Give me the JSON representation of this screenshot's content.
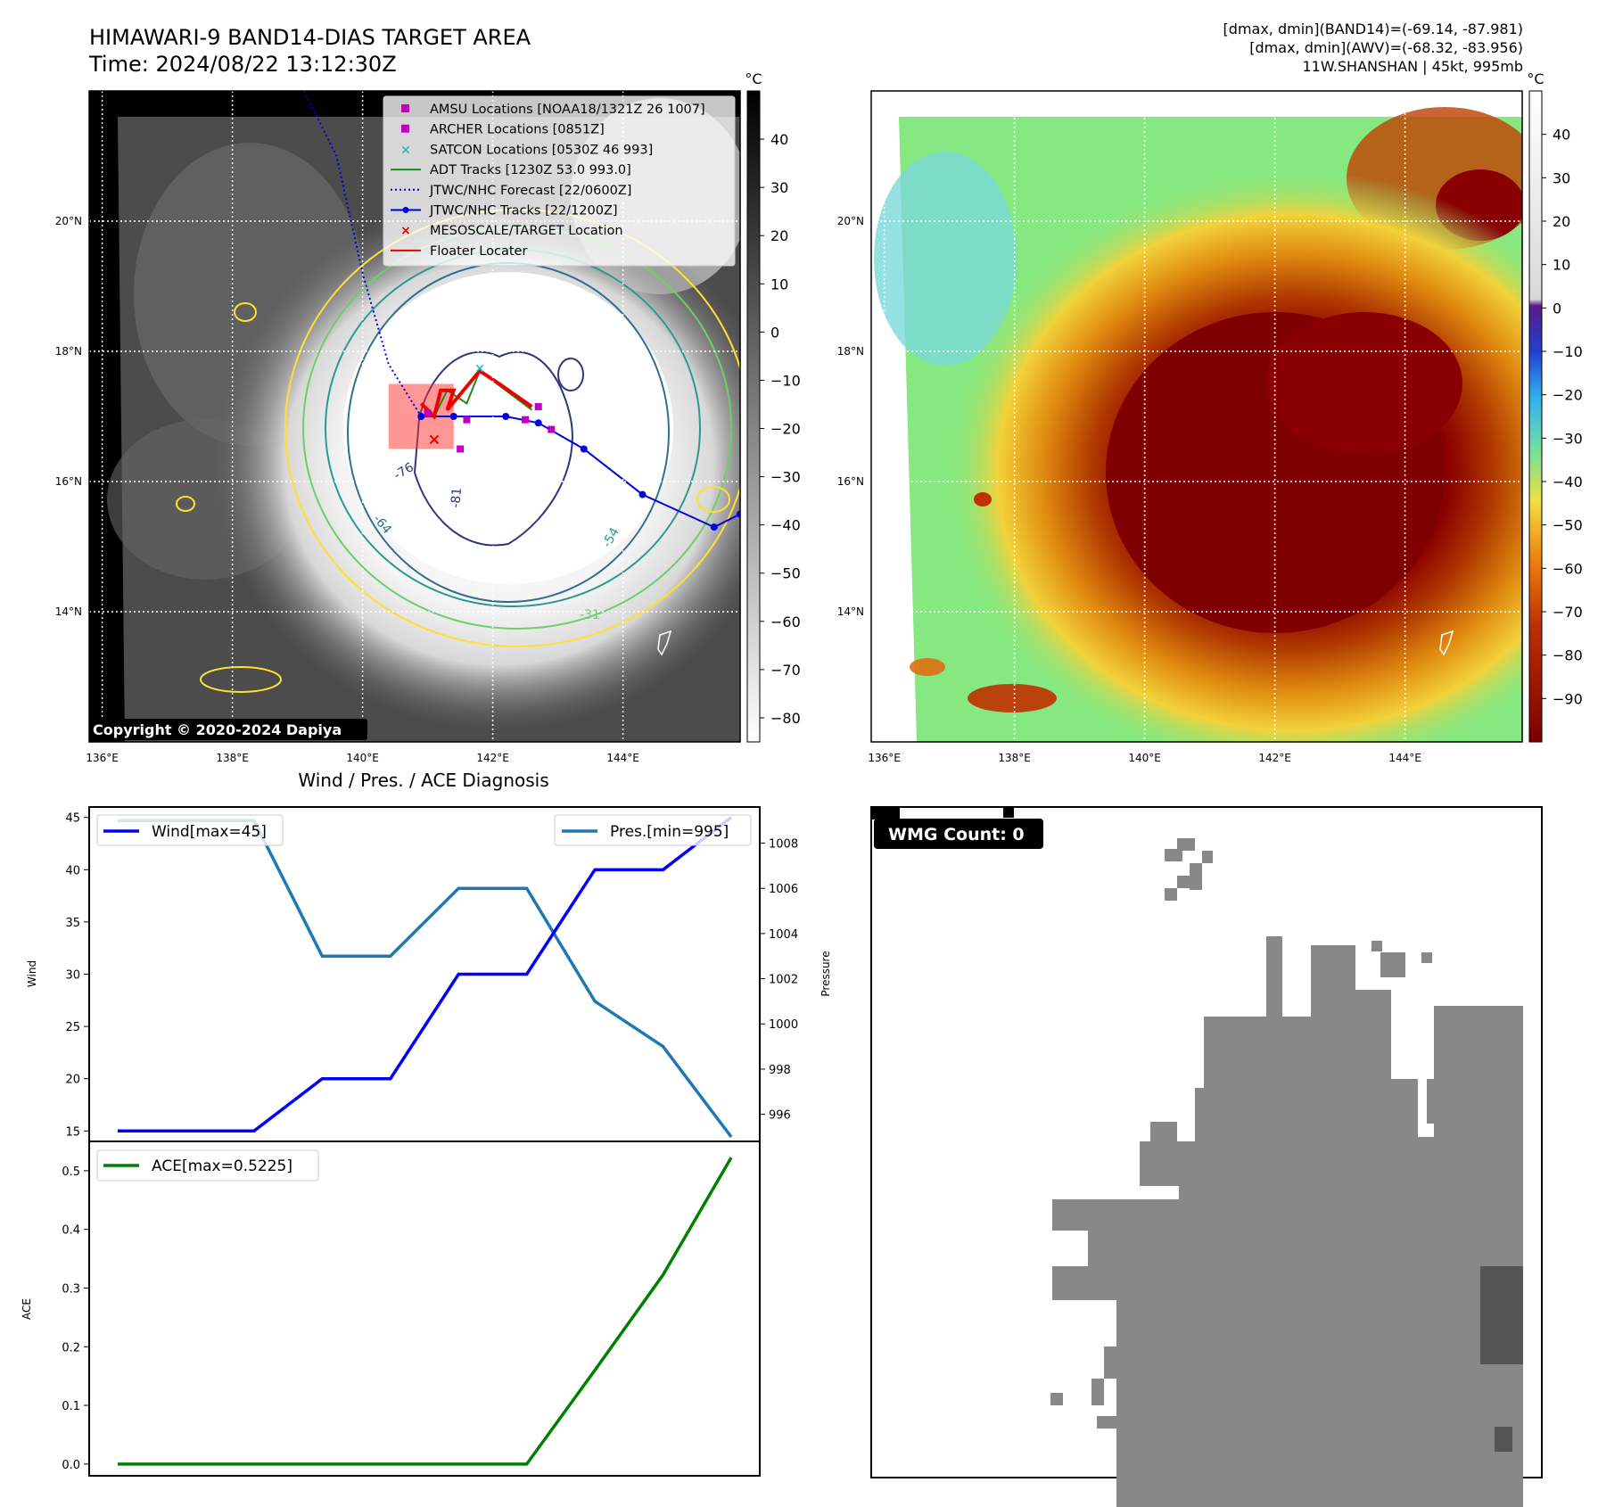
{
  "header": {
    "title": "HIMAWARI-9 BAND14-DIAS TARGET AREA",
    "time": "Time: 2024/08/22 13:12:30Z",
    "stats_band14": "[dmax, dmin](BAND14)=(-69.14, -87.981)",
    "stats_awv": "[dmax, dmin](AWV)=(-68.32, -83.956)",
    "storm": "11W.SHANSHAN | 45kt, 995mb"
  },
  "map": {
    "lon_ticks": [
      "136°E",
      "138°E",
      "140°E",
      "142°E",
      "144°E"
    ],
    "lat_ticks": [
      "20°N",
      "18°N",
      "16°N",
      "14°N"
    ],
    "lon_values": [
      136,
      138,
      140,
      142,
      144
    ],
    "lat_values": [
      20,
      18,
      16,
      14
    ],
    "lon_range": [
      135.8,
      145.8
    ],
    "lat_range": [
      12.0,
      22.0
    ],
    "copyright": "Copyright © 2020-2024 Dapiya",
    "contour_labels": [
      "-31",
      "-54",
      "-64",
      "-76",
      "-81"
    ],
    "legend": [
      {
        "label": "AMSU Locations [NOAA18/1321Z 26 1007]",
        "marker": "square",
        "color": "#c000c0"
      },
      {
        "label": "ARCHER Locations [0851Z]",
        "marker": "square",
        "color": "#c000c0"
      },
      {
        "label": "SATCON Locations [0530Z 46 993]",
        "marker": "x",
        "color": "#20c0c0"
      },
      {
        "label": "ADT Tracks [1230Z 53.0 993.0]",
        "marker": "line",
        "color": "#1a8a1a"
      },
      {
        "label": "JTWC/NHC Forecast [22/0600Z]",
        "marker": "dotted",
        "color": "#0000dd"
      },
      {
        "label": "JTWC/NHC Tracks [22/1200Z]",
        "marker": "line-dot",
        "color": "#0000dd"
      },
      {
        "label": "MESOSCALE/TARGET Location",
        "marker": "x",
        "color": "#ee0000"
      },
      {
        "label": "Floater Locater",
        "marker": "line",
        "color": "#ee0000"
      }
    ],
    "jtwc_track": [
      [
        140.9,
        17.0
      ],
      [
        141.4,
        17.0
      ],
      [
        142.2,
        17.0
      ],
      [
        142.7,
        16.9
      ],
      [
        143.4,
        16.5
      ],
      [
        144.3,
        15.8
      ],
      [
        145.4,
        15.3
      ],
      [
        145.8,
        15.5
      ]
    ],
    "jtwc_forecast": [
      [
        139.1,
        22.0
      ],
      [
        139.6,
        21.0
      ],
      [
        140.0,
        19.2
      ],
      [
        140.4,
        17.8
      ],
      [
        140.9,
        17.0
      ]
    ],
    "amsu": [
      [
        141.0,
        17.05
      ],
      [
        141.6,
        16.95
      ],
      [
        142.5,
        16.95
      ],
      [
        142.9,
        16.8
      ],
      [
        141.5,
        16.5
      ]
    ],
    "archer": [
      [
        142.7,
        17.15
      ]
    ],
    "satcon": [
      [
        141.8,
        17.75
      ]
    ],
    "target": [
      [
        141.1,
        16.65
      ]
    ]
  },
  "colorbar_gray": {
    "unit": "°C",
    "ticks": [
      "40",
      "30",
      "20",
      "10",
      "0",
      "−10",
      "−20",
      "−30",
      "−40",
      "−50",
      "−60",
      "−70",
      "−80"
    ],
    "values": [
      40,
      30,
      20,
      10,
      0,
      -10,
      -20,
      -30,
      -40,
      -50,
      -60,
      -70,
      -80
    ],
    "range": [
      -85,
      50
    ]
  },
  "colorbar_awv": {
    "unit": "°C",
    "ticks": [
      "40",
      "30",
      "20",
      "10",
      "0",
      "−10",
      "−20",
      "−30",
      "−40",
      "−50",
      "−60",
      "−70",
      "−80",
      "−90"
    ],
    "values": [
      40,
      30,
      20,
      10,
      0,
      -10,
      -20,
      -30,
      -40,
      -50,
      -60,
      -70,
      -80,
      -90
    ],
    "range": [
      -100,
      50
    ]
  },
  "chart_data": [
    {
      "type": "line",
      "title": "Wind / Pres. / ACE Diagnosis",
      "ylabel": "Wind",
      "y2label": "Pressure",
      "ylim": [
        14,
        46
      ],
      "y2lim": [
        994.8,
        1009.6
      ],
      "yticks": [
        15,
        20,
        25,
        30,
        35,
        40,
        45
      ],
      "y2ticks": [
        996,
        998,
        1000,
        1002,
        1004,
        1006,
        1008
      ],
      "x": [
        0,
        1,
        2,
        3,
        4,
        5,
        6,
        7,
        8,
        9
      ],
      "series": [
        {
          "name": "Wind[max=45]",
          "color": "#0000ff",
          "axis": "left",
          "values": [
            15,
            15,
            15,
            20,
            20,
            30,
            30,
            40,
            40,
            45
          ]
        },
        {
          "name": "Pres.[min=995]",
          "color": "#1f77b4",
          "axis": "right",
          "values": [
            1009,
            1009,
            1009,
            1003,
            1003,
            1006,
            1006,
            1001,
            999,
            995
          ]
        }
      ]
    },
    {
      "type": "line",
      "ylabel": "ACE",
      "ylim": [
        -0.02,
        0.55
      ],
      "yticks": [
        "0.0",
        "0.1",
        "0.2",
        "0.3",
        "0.4",
        "0.5"
      ],
      "ytick_values": [
        0,
        0.1,
        0.2,
        0.3,
        0.4,
        0.5
      ],
      "x": [
        0,
        1,
        2,
        3,
        4,
        5,
        6,
        7,
        8,
        9
      ],
      "series": [
        {
          "name": "ACE[max=0.5225]",
          "color": "#008000",
          "values": [
            0,
            0,
            0,
            0,
            0,
            0,
            0,
            0.16,
            0.3225,
            0.5225
          ]
        }
      ]
    }
  ],
  "wmg": {
    "label": "WMG Count: 0"
  }
}
